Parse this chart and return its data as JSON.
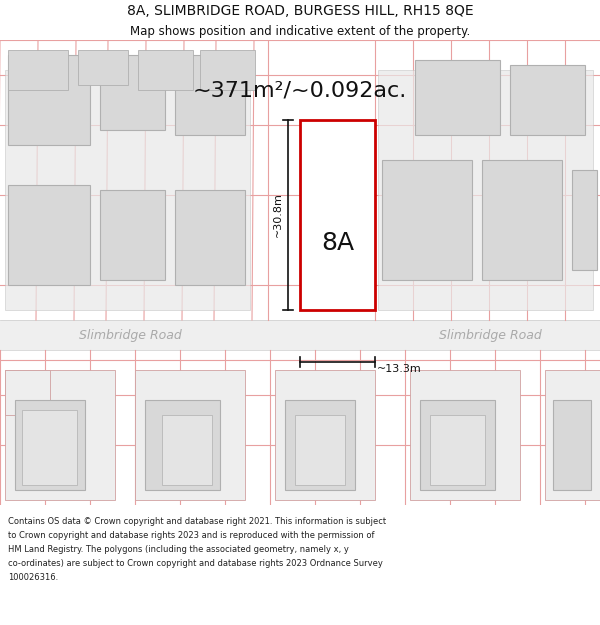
{
  "title": "8A, SLIMBRIDGE ROAD, BURGESS HILL, RH15 8QE",
  "subtitle": "Map shows position and indicative extent of the property.",
  "area_label": "~371m²/~0.092ac.",
  "property_label": "8A",
  "width_label": "~13.3m",
  "height_label": "~30.8m",
  "road_label_left": "Slimbridge Road",
  "road_label_right": "Slimbridge Road",
  "footer_lines": [
    "Contains OS data © Crown copyright and database right 2021. This information is subject",
    "to Crown copyright and database rights 2023 and is reproduced with the permission of",
    "HM Land Registry. The polygons (including the associated geometry, namely x, y",
    "co-ordinates) are subject to Crown copyright and database rights 2023 Ordnance Survey",
    "100026316."
  ],
  "bg_color": "#ffffff",
  "map_bg": "#f8f8f8",
  "road_color": "#efefef",
  "lot_line_color": "#e8a0a0",
  "building_fill": "#d8d8d8",
  "building_outline": "#b0b0b0",
  "property_outline": "#cc0000",
  "property_fill": "#ffffff",
  "dim_line_color": "#111111",
  "text_color": "#111111",
  "road_text_color": "#aaaaaa",
  "title_fontsize": 10,
  "subtitle_fontsize": 8.5,
  "area_fontsize": 16,
  "label_8a_fontsize": 18,
  "dim_fontsize": 8,
  "road_fontsize": 9,
  "footer_fontsize": 6.0
}
